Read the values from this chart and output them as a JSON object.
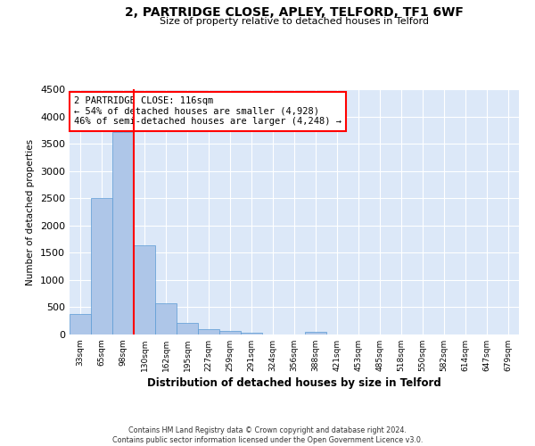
{
  "title1": "2, PARTRIDGE CLOSE, APLEY, TELFORD, TF1 6WF",
  "title2": "Size of property relative to detached houses in Telford",
  "xlabel": "Distribution of detached houses by size in Telford",
  "ylabel": "Number of detached properties",
  "annotation_title": "2 PARTRIDGE CLOSE: 116sqm",
  "annotation_line1": "← 54% of detached houses are smaller (4,928)",
  "annotation_line2": "46% of semi-detached houses are larger (4,248) →",
  "footer1": "Contains HM Land Registry data © Crown copyright and database right 2024.",
  "footer2": "Contains public sector information licensed under the Open Government Licence v3.0.",
  "categories": [
    "33sqm",
    "65sqm",
    "98sqm",
    "130sqm",
    "162sqm",
    "195sqm",
    "227sqm",
    "259sqm",
    "291sqm",
    "324sqm",
    "356sqm",
    "388sqm",
    "421sqm",
    "453sqm",
    "485sqm",
    "518sqm",
    "550sqm",
    "582sqm",
    "614sqm",
    "647sqm",
    "679sqm"
  ],
  "values": [
    370,
    2500,
    3720,
    1630,
    580,
    220,
    105,
    60,
    35,
    0,
    0,
    55,
    0,
    0,
    0,
    0,
    0,
    0,
    0,
    0,
    0
  ],
  "bar_color": "#aec6e8",
  "bar_edge_color": "#5b9bd5",
  "vline_x_index": 2.5,
  "vline_color": "red",
  "annotation_box_color": "red",
  "background_color": "#dce8f8",
  "ylim": [
    0,
    4500
  ],
  "yticks": [
    0,
    500,
    1000,
    1500,
    2000,
    2500,
    3000,
    3500,
    4000,
    4500
  ]
}
